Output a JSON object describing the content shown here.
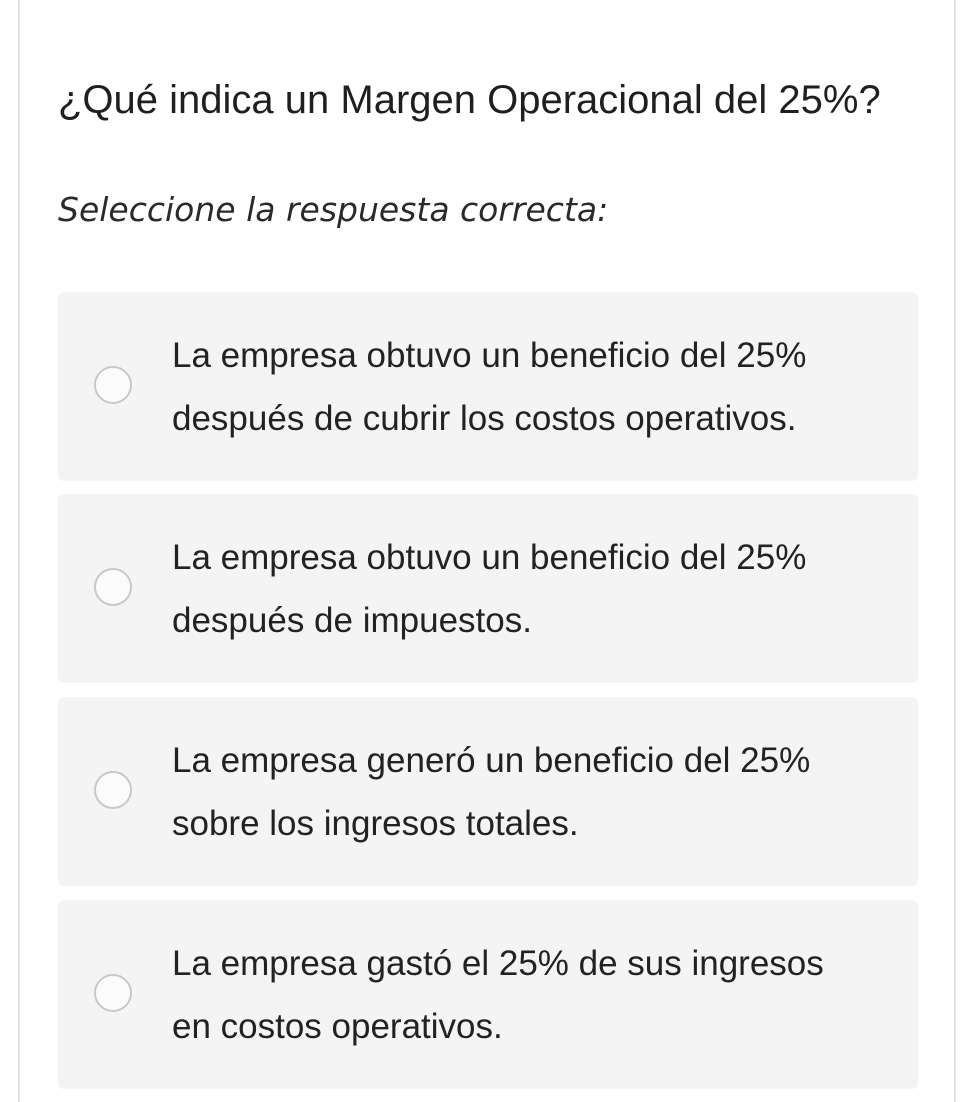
{
  "question": {
    "title": "¿Qué indica un Margen Operacional del 25%?",
    "instruction": "Seleccione la respuesta correcta:"
  },
  "options": [
    {
      "label": "La empresa obtuvo un beneficio del 25% después de cubrir los costos operativos.",
      "selected": false
    },
    {
      "label": "La empresa obtuvo un beneficio del 25% después de impuestos.",
      "selected": false
    },
    {
      "label": "La empresa generó un beneficio del 25% sobre los ingresos totales.",
      "selected": false
    },
    {
      "label": "La empresa gastó el 25% de sus ingresos en costos operativos.",
      "selected": false
    }
  ]
}
